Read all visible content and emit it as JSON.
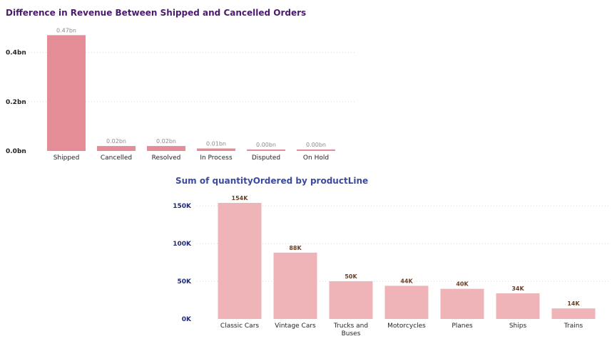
{
  "titles": {
    "chart1": "Difference in Revenue Between Shipped and Cancelled Orders",
    "chart2": "Sum of quantityOrdered by productLine"
  },
  "colors": {
    "chart1_bar": "#e58d97",
    "chart2_bar": "#efb4b8",
    "chart1_axis_text": "#252423",
    "chart2_axis_text": "#1e2a78",
    "chart1_data_label": "#8a8a8a",
    "chart2_data_label": "#6b3d24"
  },
  "chart_data": [
    {
      "type": "bar",
      "title": "Difference in Revenue Between Shipped and Cancelled Orders",
      "categories": [
        "Shipped",
        "Cancelled",
        "Resolved",
        "In Process",
        "Disputed",
        "On Hold"
      ],
      "values": [
        0.47,
        0.02,
        0.02,
        0.01,
        0.004,
        0.003
      ],
      "data_labels": [
        "0.47bn",
        "0.02bn",
        "0.02bn",
        "0.01bn",
        "0.00bn",
        "0.00bn"
      ],
      "ylim": [
        0,
        0.5
      ],
      "yticks": [
        0,
        0.2,
        0.4
      ],
      "ytick_labels": [
        "0.0bn",
        "0.2bn",
        "0.4bn"
      ],
      "grid": true,
      "xlabel": "",
      "ylabel": ""
    },
    {
      "type": "bar",
      "title": "Sum of quantityOrdered by productLine",
      "categories": [
        "Classic Cars",
        "Vintage Cars",
        "Trucks and Buses",
        "Motorcycles",
        "Planes",
        "Ships",
        "Trains"
      ],
      "values": [
        154,
        88,
        50,
        44,
        40,
        34,
        14
      ],
      "data_labels": [
        "154K",
        "88K",
        "50K",
        "44K",
        "40K",
        "34K",
        "14K"
      ],
      "ylim": [
        0,
        160
      ],
      "yticks": [
        0,
        50,
        100,
        150
      ],
      "ytick_labels": [
        "0K",
        "50K",
        "100K",
        "150K"
      ],
      "grid": true,
      "xlabel": "",
      "ylabel": ""
    }
  ]
}
